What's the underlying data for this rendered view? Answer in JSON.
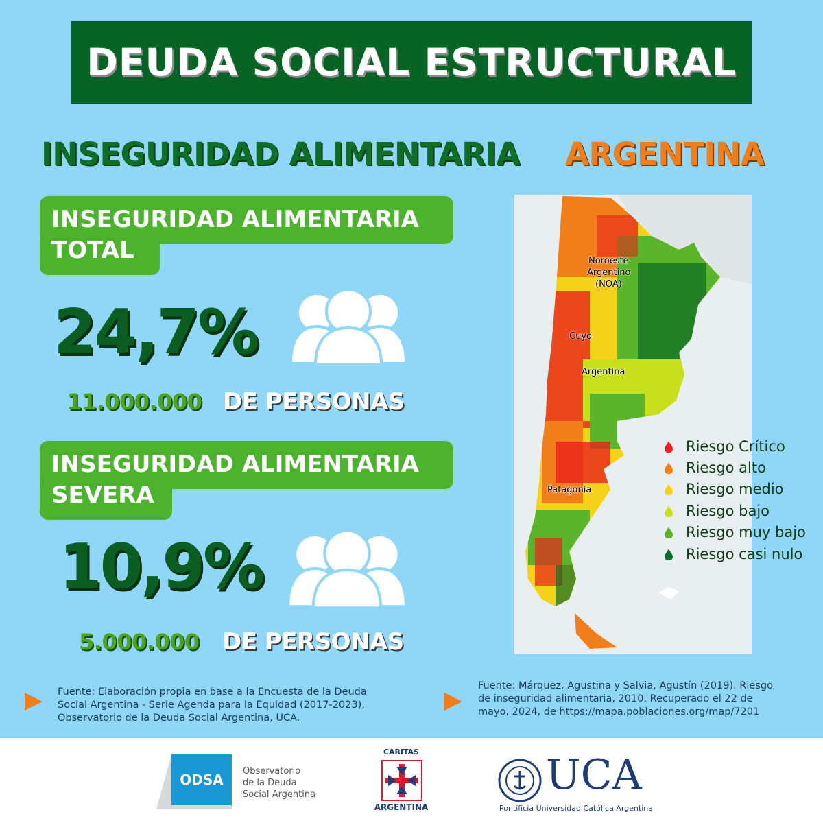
{
  "header": {
    "title": "DEUDA SOCIAL ESTRUCTURAL"
  },
  "headings": {
    "left": "INSEGURIDAD ALIMENTARIA",
    "right": "ARGENTINA"
  },
  "stats": [
    {
      "label_line1": "INSEGURIDAD ALIMENTARIA",
      "label_line2": "TOTAL",
      "percent": "24,7%",
      "count": "11.000.000",
      "unit": "DE PERSONAS"
    },
    {
      "label_line1": "INSEGURIDAD ALIMENTARIA",
      "label_line2": "SEVERA",
      "percent": "10,9%",
      "count": "5.000.000",
      "unit": "DE PERSONAS"
    }
  ],
  "map": {
    "labels": {
      "noa_1": "Noroeste",
      "noa_2": "Argentino",
      "noa_3": "(NOA)",
      "cuyo": "Cuyo",
      "argentina": "Argentina",
      "patagonia": "Patagonia"
    },
    "legend": [
      {
        "label": "Riesgo Crítico",
        "color": "#e8231d"
      },
      {
        "label": "Riesgo alto",
        "color": "#f07f1b"
      },
      {
        "label": "Riesgo medio",
        "color": "#f5d21a"
      },
      {
        "label": "Riesgo bajo",
        "color": "#c8e01c"
      },
      {
        "label": "Riesgo muy bajo",
        "color": "#5bb52a"
      },
      {
        "label": "Riesgo casi nulo",
        "color": "#0f6e25"
      }
    ]
  },
  "sources": {
    "left": [
      "Fuente: Elaboración propia en base a la Encuesta de la Deuda",
      "Social Argentina - Serie Agenda para la Equidad (2017-2023),",
      "Observatorio de la Deuda Social Argentina, UCA."
    ],
    "right": [
      "Fuente: Márquez, Agustina y Salvia, Agustín (2019). Riesgo",
      "de inseguridad alimentaria, 2010. Recuperado el 22 de",
      "mayo, 2024, de https://mapa.poblaciones.org/map/7201"
    ]
  },
  "footer": {
    "odsa": {
      "badge": "ODSA",
      "line1": "Observatorio",
      "line2": "de la Deuda",
      "line3": "Social Argentina"
    },
    "caritas": {
      "top": "CÁRITAS",
      "bottom": "ARGENTINA"
    },
    "uca": {
      "name": "UCA",
      "subtitle": "Pontificia Universidad Católica Argentina"
    }
  },
  "colors": {
    "banner": "#076424",
    "background": "#8fd6f7",
    "pill": "#4db32e",
    "accent_orange": "#f07f1b"
  }
}
